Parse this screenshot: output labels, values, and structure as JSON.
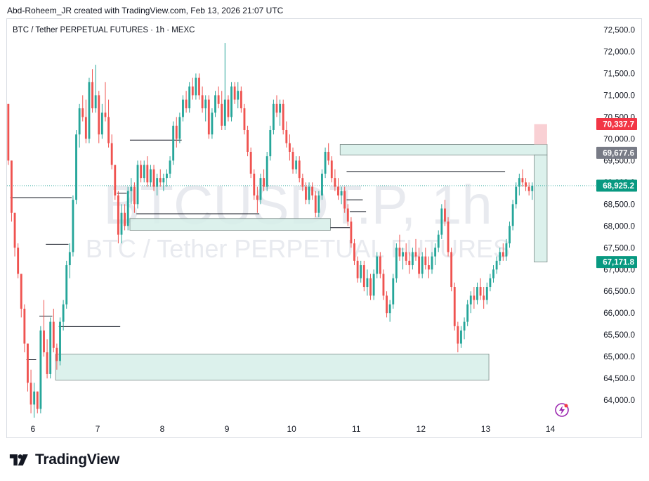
{
  "header": {
    "credit": "Abd-Roheem_JR created with TradingView.com, Feb 13, 2026 21:07 UTC"
  },
  "chart_data": {
    "type": "candlestick",
    "title": "BTC / Tether PERPETUAL FUTURES · 1h · MEXC",
    "watermark": {
      "symbol": "BTCUSDT.P, 1h",
      "description": "BTC / Tether PERPETUAL FUTURES"
    },
    "y_axis": {
      "ylim": [
        63550,
        72750
      ],
      "ticks": [
        {
          "value": 64000,
          "label": "64,000.0"
        },
        {
          "value": 64500,
          "label": "64,500.0"
        },
        {
          "value": 65000,
          "label": "65,000.0"
        },
        {
          "value": 65500,
          "label": "65,500.0"
        },
        {
          "value": 66000,
          "label": "66,000.0"
        },
        {
          "value": 66500,
          "label": "66,500.0"
        },
        {
          "value": 67000,
          "label": "67,000.0"
        },
        {
          "value": 67500,
          "label": "67,500.0"
        },
        {
          "value": 68000,
          "label": "68,000.0"
        },
        {
          "value": 68500,
          "label": "68,500.0"
        },
        {
          "value": 69000,
          "label": "69,000.0"
        },
        {
          "value": 69500,
          "label": "69,500.0"
        },
        {
          "value": 70000,
          "label": "70,000.0"
        },
        {
          "value": 70500,
          "label": "70,500.0"
        },
        {
          "value": 71000,
          "label": "71,000.0"
        },
        {
          "value": 71500,
          "label": "71,500.0"
        },
        {
          "value": 72000,
          "label": "72,000.0"
        },
        {
          "value": 72500,
          "label": "72,500.0"
        }
      ]
    },
    "x_axis": {
      "xlim": [
        5.6,
        14.7
      ],
      "ticks": [
        {
          "value": 6,
          "label": "6"
        },
        {
          "value": 7,
          "label": "7"
        },
        {
          "value": 8,
          "label": "8"
        },
        {
          "value": 9,
          "label": "9"
        },
        {
          "value": 10,
          "label": "10"
        },
        {
          "value": 11,
          "label": "11"
        },
        {
          "value": 12,
          "label": "12"
        },
        {
          "value": 13,
          "label": "13"
        },
        {
          "value": 14,
          "label": "14"
        }
      ]
    },
    "price_labels": [
      {
        "value": 70337.7,
        "label": "70,337.7",
        "color": "#f23645"
      },
      {
        "value": 69677.6,
        "label": "69,677.6",
        "color": "#787b86"
      },
      {
        "value": 68925.2,
        "label": "68,925.2",
        "color": "#089981"
      },
      {
        "value": 67171.8,
        "label": "67,171.8",
        "color": "#089981"
      }
    ],
    "current_price": 68925.2,
    "colors": {
      "up": "#26a69a",
      "down": "#ef5350",
      "zone_fill": "#d6efe9",
      "zone_stroke": "#7a8a87",
      "line": "#131722"
    },
    "zones": [
      {
        "x0": 6.35,
        "x1": 13.05,
        "y0": 64460,
        "y1": 65060
      },
      {
        "x0": 7.5,
        "x1": 10.6,
        "y0": 67900,
        "y1": 68170
      },
      {
        "x0": 10.75,
        "x1": 13.95,
        "y0": 69630,
        "y1": 69870
      },
      {
        "x0": 13.75,
        "x1": 13.95,
        "y0": 67171.8,
        "y1": 69630
      },
      {
        "x0": 13.75,
        "x1": 13.95,
        "y0": 69870,
        "y1": 70337.7,
        "color": "#f8cbcf"
      }
    ],
    "levels": [
      {
        "x0": 5.65,
        "x1": 6.6,
        "y": 68650
      },
      {
        "x0": 6.2,
        "x1": 6.55,
        "y": 67580
      },
      {
        "x0": 6.1,
        "x1": 6.3,
        "y": 65930
      },
      {
        "x0": 6.4,
        "x1": 7.35,
        "y": 65690
      },
      {
        "x0": 5.9,
        "x1": 6.05,
        "y": 64930
      },
      {
        "x0": 7.3,
        "x1": 7.45,
        "y": 68750
      },
      {
        "x0": 7.5,
        "x1": 8.3,
        "y": 69970
      },
      {
        "x0": 7.6,
        "x1": 9.5,
        "y": 68280
      },
      {
        "x0": 10.6,
        "x1": 10.9,
        "y": 67960
      },
      {
        "x0": 10.85,
        "x1": 13.3,
        "y": 69250
      },
      {
        "x0": 10.85,
        "x1": 11.1,
        "y": 68600
      },
      {
        "x0": 10.9,
        "x1": 11.15,
        "y": 68330
      }
    ],
    "candles": [
      [
        5.62,
        70800,
        70800,
        69400,
        69500
      ],
      [
        5.67,
        69500,
        69500,
        68100,
        68300
      ],
      [
        5.72,
        68300,
        68300,
        67300,
        67500
      ],
      [
        5.77,
        67500,
        67600,
        66800,
        66900
      ],
      [
        5.82,
        66900,
        66900,
        65900,
        66100
      ],
      [
        5.87,
        66100,
        66200,
        65100,
        65300
      ],
      [
        5.92,
        65300,
        65300,
        64200,
        64400
      ],
      [
        5.97,
        64400,
        64700,
        63700,
        63900
      ],
      [
        6.02,
        63900,
        64400,
        63600,
        64200
      ],
      [
        6.07,
        64200,
        64200,
        63700,
        63800
      ],
      [
        6.12,
        63800,
        65700,
        63700,
        65600
      ],
      [
        6.17,
        65600,
        66300,
        65000,
        65100
      ],
      [
        6.22,
        65100,
        65400,
        64500,
        64600
      ],
      [
        6.27,
        64600,
        65900,
        64500,
        65800
      ],
      [
        6.32,
        65800,
        66100,
        65100,
        65200
      ],
      [
        6.37,
        65200,
        65300,
        64700,
        64900
      ],
      [
        6.42,
        64900,
        65900,
        64800,
        65800
      ],
      [
        6.47,
        65800,
        66300,
        65600,
        66200
      ],
      [
        6.52,
        66200,
        67200,
        66100,
        67100
      ],
      [
        6.57,
        67100,
        67600,
        66800,
        67400
      ],
      [
        6.62,
        67400,
        68700,
        67300,
        68600
      ],
      [
        6.67,
        68600,
        70200,
        68500,
        70100
      ],
      [
        6.72,
        70100,
        70800,
        69800,
        70700
      ],
      [
        6.77,
        70700,
        71000,
        70400,
        70500
      ],
      [
        6.82,
        70500,
        70900,
        69900,
        70000
      ],
      [
        6.87,
        70000,
        71400,
        69900,
        71300
      ],
      [
        6.92,
        71300,
        71600,
        70600,
        70700
      ],
      [
        6.97,
        70700,
        71700,
        70600,
        71000
      ],
      [
        7.02,
        71000,
        71100,
        69900,
        70100
      ],
      [
        7.07,
        70100,
        70800,
        70000,
        70600
      ],
      [
        7.12,
        70600,
        71300,
        70400,
        70500
      ],
      [
        7.17,
        70500,
        70900,
        69800,
        69900
      ],
      [
        7.22,
        69900,
        70100,
        69300,
        69400
      ],
      [
        7.27,
        69400,
        69400,
        68600,
        68700
      ],
      [
        7.32,
        68700,
        68800,
        67600,
        67800
      ],
      [
        7.37,
        67800,
        68500,
        67600,
        68300
      ],
      [
        7.42,
        68300,
        68500,
        67900,
        68000
      ],
      [
        7.47,
        68000,
        68900,
        67900,
        68800
      ],
      [
        7.52,
        68800,
        69100,
        68500,
        68900
      ],
      [
        7.57,
        68900,
        69000,
        68300,
        68500
      ],
      [
        7.62,
        68500,
        69500,
        68400,
        69400
      ],
      [
        7.67,
        69400,
        69500,
        69000,
        69100
      ],
      [
        7.72,
        69100,
        69500,
        69000,
        69400
      ],
      [
        7.77,
        69400,
        69600,
        68900,
        69000
      ],
      [
        7.82,
        69000,
        69400,
        68900,
        69300
      ],
      [
        7.87,
        69300,
        69400,
        68800,
        68900
      ],
      [
        7.92,
        68900,
        69200,
        68700,
        69100
      ],
      [
        7.97,
        69100,
        69300,
        68900,
        69000
      ],
      [
        8.02,
        69000,
        69200,
        68800,
        69100
      ],
      [
        8.07,
        69100,
        69300,
        68900,
        69200
      ],
      [
        8.12,
        69200,
        69600,
        69100,
        69500
      ],
      [
        8.17,
        69500,
        70400,
        69400,
        70300
      ],
      [
        8.22,
        70300,
        70500,
        69800,
        70000
      ],
      [
        8.27,
        70000,
        70600,
        69900,
        70500
      ],
      [
        8.32,
        70500,
        71000,
        70400,
        70900
      ],
      [
        8.37,
        70900,
        71100,
        70600,
        70700
      ],
      [
        8.42,
        70700,
        71300,
        70600,
        71200
      ],
      [
        8.47,
        71200,
        71400,
        70900,
        71000
      ],
      [
        8.52,
        71000,
        71500,
        70900,
        71400
      ],
      [
        8.57,
        71400,
        71500,
        70900,
        71000
      ],
      [
        8.62,
        71000,
        71200,
        70600,
        70700
      ],
      [
        8.67,
        70700,
        71000,
        70400,
        70900
      ],
      [
        8.72,
        70900,
        71000,
        70000,
        70100
      ],
      [
        8.77,
        70100,
        70700,
        70000,
        70600
      ],
      [
        8.82,
        70600,
        71100,
        70500,
        71000
      ],
      [
        8.87,
        71000,
        71200,
        70700,
        70800
      ],
      [
        8.92,
        70800,
        71100,
        70200,
        70300
      ],
      [
        8.97,
        70300,
        72200,
        70200,
        70900
      ],
      [
        9.02,
        70900,
        71000,
        70400,
        70500
      ],
      [
        9.07,
        70500,
        71300,
        70400,
        71200
      ],
      [
        9.12,
        71200,
        71300,
        70800,
        70900
      ],
      [
        9.17,
        70900,
        71300,
        70700,
        71100
      ],
      [
        9.22,
        71100,
        71200,
        70600,
        70700
      ],
      [
        9.27,
        70700,
        70800,
        70100,
        70200
      ],
      [
        9.32,
        70200,
        70300,
        69600,
        69700
      ],
      [
        9.37,
        69700,
        69800,
        69100,
        69200
      ],
      [
        9.42,
        69200,
        69300,
        68600,
        68700
      ],
      [
        9.47,
        68700,
        68900,
        68300,
        68600
      ],
      [
        9.52,
        68600,
        69200,
        68500,
        69100
      ],
      [
        9.57,
        69100,
        69300,
        68800,
        68900
      ],
      [
        9.62,
        68900,
        69700,
        68800,
        69600
      ],
      [
        9.67,
        69600,
        70300,
        69500,
        70200
      ],
      [
        9.72,
        70200,
        70900,
        70100,
        70800
      ],
      [
        9.77,
        70800,
        71000,
        70500,
        70600
      ],
      [
        9.82,
        70600,
        70900,
        70300,
        70800
      ],
      [
        9.87,
        70800,
        70900,
        70100,
        70200
      ],
      [
        9.92,
        70200,
        70400,
        69800,
        69900
      ],
      [
        9.97,
        69900,
        70100,
        69500,
        69700
      ],
      [
        10.02,
        69700,
        69800,
        69200,
        69300
      ],
      [
        10.07,
        69300,
        69600,
        69200,
        69500
      ],
      [
        10.12,
        69500,
        69600,
        69000,
        69100
      ],
      [
        10.17,
        69100,
        69200,
        68800,
        68900
      ],
      [
        10.22,
        68900,
        69000,
        68500,
        68600
      ],
      [
        10.27,
        68600,
        69000,
        68500,
        68900
      ],
      [
        10.32,
        68900,
        69000,
        68600,
        68700
      ],
      [
        10.37,
        68700,
        68800,
        68200,
        68300
      ],
      [
        10.42,
        68300,
        68800,
        68200,
        68700
      ],
      [
        10.47,
        68700,
        69300,
        68600,
        69200
      ],
      [
        10.52,
        69200,
        69800,
        69100,
        69700
      ],
      [
        10.57,
        69700,
        69900,
        69400,
        69500
      ],
      [
        10.62,
        69500,
        69600,
        69000,
        69100
      ],
      [
        10.67,
        69100,
        69300,
        68800,
        68900
      ],
      [
        10.72,
        68900,
        69100,
        68600,
        68700
      ],
      [
        10.77,
        68700,
        68900,
        68500,
        68800
      ],
      [
        10.82,
        68800,
        68900,
        68300,
        68400
      ],
      [
        10.87,
        68400,
        68500,
        68000,
        68100
      ],
      [
        10.92,
        68100,
        68200,
        67500,
        67600
      ],
      [
        10.97,
        67600,
        67700,
        67100,
        67200
      ],
      [
        11.02,
        67200,
        67300,
        66700,
        66800
      ],
      [
        11.07,
        66800,
        67200,
        66700,
        67100
      ],
      [
        11.12,
        67100,
        67200,
        66500,
        66600
      ],
      [
        11.17,
        66600,
        67000,
        66400,
        66800
      ],
      [
        11.22,
        66800,
        66900,
        66300,
        66400
      ],
      [
        11.27,
        66400,
        67000,
        66300,
        66900
      ],
      [
        11.32,
        66900,
        67400,
        66800,
        67300
      ],
      [
        11.37,
        67300,
        67400,
        66800,
        66900
      ],
      [
        11.42,
        66900,
        67000,
        66300,
        66400
      ],
      [
        11.47,
        66400,
        66500,
        65900,
        66000
      ],
      [
        11.52,
        66000,
        66300,
        65800,
        66200
      ],
      [
        11.57,
        66200,
        66900,
        66100,
        66800
      ],
      [
        11.62,
        66800,
        67600,
        66700,
        67500
      ],
      [
        11.67,
        67500,
        67800,
        67200,
        67300
      ],
      [
        11.72,
        67300,
        67500,
        67000,
        67400
      ],
      [
        11.77,
        67400,
        67600,
        67100,
        67200
      ],
      [
        11.82,
        67200,
        67400,
        66900,
        67100
      ],
      [
        11.87,
        67100,
        67500,
        67000,
        67400
      ],
      [
        11.92,
        67400,
        67700,
        67200,
        67300
      ],
      [
        11.97,
        67300,
        67500,
        66800,
        66900
      ],
      [
        12.02,
        66900,
        67400,
        66800,
        67300
      ],
      [
        12.07,
        67300,
        67500,
        67000,
        67100
      ],
      [
        12.12,
        67100,
        67300,
        66800,
        67000
      ],
      [
        12.17,
        67000,
        67400,
        66900,
        67300
      ],
      [
        12.22,
        67300,
        67600,
        67100,
        67500
      ],
      [
        12.27,
        67500,
        67900,
        67400,
        67800
      ],
      [
        12.32,
        67800,
        68500,
        67700,
        68400
      ],
      [
        12.37,
        68400,
        68600,
        68000,
        68100
      ],
      [
        12.42,
        68100,
        68200,
        67300,
        67400
      ],
      [
        12.47,
        67400,
        67500,
        66500,
        66600
      ],
      [
        12.52,
        66600,
        66700,
        65600,
        65700
      ],
      [
        12.57,
        65700,
        65800,
        65100,
        65300
      ],
      [
        12.62,
        65300,
        65700,
        65200,
        65600
      ],
      [
        12.67,
        65600,
        65900,
        65400,
        65800
      ],
      [
        12.72,
        65800,
        66300,
        65700,
        66200
      ],
      [
        12.77,
        66200,
        66500,
        66000,
        66400
      ],
      [
        12.82,
        66400,
        66600,
        66100,
        66300
      ],
      [
        12.87,
        66300,
        66700,
        66200,
        66600
      ],
      [
        12.92,
        66600,
        66800,
        66300,
        66400
      ],
      [
        12.97,
        66400,
        66600,
        66100,
        66300
      ],
      [
        13.02,
        66300,
        66700,
        66200,
        66600
      ],
      [
        13.07,
        66600,
        66900,
        66500,
        66800
      ],
      [
        13.12,
        66800,
        67100,
        66700,
        67000
      ],
      [
        13.17,
        67000,
        67300,
        66900,
        67200
      ],
      [
        13.22,
        67200,
        67500,
        67100,
        67400
      ],
      [
        13.27,
        67400,
        67600,
        67200,
        67300
      ],
      [
        13.32,
        67300,
        67700,
        67200,
        67600
      ],
      [
        13.37,
        67600,
        68100,
        67500,
        68000
      ],
      [
        13.42,
        68000,
        68600,
        67900,
        68500
      ],
      [
        13.47,
        68500,
        69000,
        68400,
        68900
      ],
      [
        13.52,
        68900,
        69200,
        68700,
        69100
      ],
      [
        13.57,
        69100,
        69300,
        68900,
        69000
      ],
      [
        13.62,
        69000,
        69100,
        68800,
        68900
      ],
      [
        13.67,
        68900,
        69000,
        68700,
        68800
      ],
      [
        13.72,
        68800,
        69000,
        68600,
        68925
      ]
    ]
  },
  "brand": {
    "name": "TradingView"
  }
}
